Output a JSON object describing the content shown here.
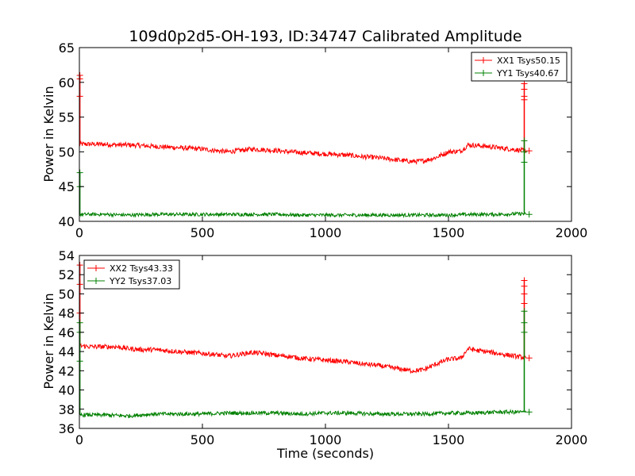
{
  "figure": {
    "title": "109d0p2d5-OH-193, ID:34747 Calibrated Amplitude",
    "xlabel": "Time (seconds)"
  },
  "chart_data": [
    {
      "type": "line",
      "title": "109d0p2d5-OH-193, ID:34747 Calibrated Amplitude",
      "ylabel": "Power in Kelvin",
      "xlim": [
        0,
        2000
      ],
      "ylim": [
        40,
        65
      ],
      "xticks": [
        0,
        500,
        1000,
        1500,
        2000
      ],
      "yticks": [
        40,
        45,
        50,
        55,
        60,
        65
      ],
      "grid": false,
      "legend_position": "top-right",
      "series": [
        {
          "name": "XX1 Tsys50.15",
          "color": "#ff0000",
          "noise": 0.35,
          "spikes": [
            {
              "x": 2,
              "values": [
                61.0,
                60.5,
                58.0
              ]
            },
            {
              "x": 1808,
              "values": [
                59.8,
                59.0,
                58.0,
                57.5
              ]
            }
          ],
          "points": [
            [
              0,
              51.1
            ],
            [
              50,
              51.1
            ],
            [
              100,
              51.1
            ],
            [
              150,
              51.0
            ],
            [
              200,
              51.0
            ],
            [
              250,
              50.9
            ],
            [
              300,
              50.8
            ],
            [
              350,
              50.7
            ],
            [
              400,
              50.6
            ],
            [
              450,
              50.5
            ],
            [
              500,
              50.4
            ],
            [
              550,
              50.2
            ],
            [
              600,
              50.0
            ],
            [
              650,
              50.2
            ],
            [
              700,
              50.4
            ],
            [
              750,
              50.3
            ],
            [
              800,
              50.2
            ],
            [
              850,
              50.0
            ],
            [
              900,
              49.9
            ],
            [
              950,
              49.8
            ],
            [
              1000,
              49.7
            ],
            [
              1050,
              49.6
            ],
            [
              1100,
              49.5
            ],
            [
              1150,
              49.3
            ],
            [
              1200,
              49.2
            ],
            [
              1250,
              49.0
            ],
            [
              1300,
              48.8
            ],
            [
              1350,
              48.6
            ],
            [
              1400,
              48.7
            ],
            [
              1450,
              49.2
            ],
            [
              1500,
              50.0
            ],
            [
              1550,
              50.1
            ],
            [
              1580,
              51.0
            ],
            [
              1620,
              50.9
            ],
            [
              1650,
              50.8
            ],
            [
              1700,
              50.6
            ],
            [
              1750,
              50.4
            ],
            [
              1800,
              50.2
            ],
            [
              1815,
              50.15
            ]
          ]
        },
        {
          "name": "YY1 Tsys40.67",
          "color": "#008000",
          "noise": 0.25,
          "spikes": [
            {
              "x": 2,
              "values": [
                47.0,
                45.0
              ]
            },
            {
              "x": 1808,
              "values": [
                51.6,
                50.0,
                48.5
              ]
            }
          ],
          "points": [
            [
              0,
              41.0
            ],
            [
              100,
              41.0
            ],
            [
              200,
              40.9
            ],
            [
              300,
              41.0
            ],
            [
              400,
              41.0
            ],
            [
              500,
              41.0
            ],
            [
              600,
              41.0
            ],
            [
              700,
              41.0
            ],
            [
              800,
              41.0
            ],
            [
              900,
              40.9
            ],
            [
              1000,
              40.9
            ],
            [
              1100,
              40.9
            ],
            [
              1200,
              40.9
            ],
            [
              1300,
              40.9
            ],
            [
              1400,
              40.9
            ],
            [
              1500,
              40.9
            ],
            [
              1600,
              41.0
            ],
            [
              1700,
              41.0
            ],
            [
              1800,
              41.1
            ],
            [
              1815,
              41.0
            ]
          ]
        }
      ]
    },
    {
      "type": "line",
      "title": "",
      "ylabel": "Power in Kelvin",
      "xlabel": "Time (seconds)",
      "xlim": [
        0,
        2000
      ],
      "ylim": [
        36,
        54
      ],
      "xticks": [
        0,
        500,
        1000,
        1500,
        2000
      ],
      "yticks": [
        36,
        38,
        40,
        42,
        44,
        46,
        48,
        50,
        52,
        54
      ],
      "grid": false,
      "legend_position": "top-left",
      "series": [
        {
          "name": "XX2 Tsys43.33",
          "color": "#ff0000",
          "noise": 0.25,
          "spikes": [
            {
              "x": 2,
              "values": [
                53.0,
                51.0,
                48.0
              ]
            },
            {
              "x": 1808,
              "values": [
                51.4,
                50.8,
                50.0,
                49.0
              ]
            }
          ],
          "points": [
            [
              0,
              44.6
            ],
            [
              50,
              44.5
            ],
            [
              100,
              44.5
            ],
            [
              150,
              44.5
            ],
            [
              200,
              44.3
            ],
            [
              250,
              44.2
            ],
            [
              300,
              44.2
            ],
            [
              350,
              44.1
            ],
            [
              400,
              44.0
            ],
            [
              450,
              43.9
            ],
            [
              500,
              43.8
            ],
            [
              550,
              43.7
            ],
            [
              600,
              43.5
            ],
            [
              650,
              43.7
            ],
            [
              700,
              43.9
            ],
            [
              750,
              43.8
            ],
            [
              800,
              43.6
            ],
            [
              850,
              43.5
            ],
            [
              900,
              43.3
            ],
            [
              950,
              43.2
            ],
            [
              1000,
              43.1
            ],
            [
              1050,
              43.0
            ],
            [
              1100,
              42.9
            ],
            [
              1150,
              42.7
            ],
            [
              1200,
              42.6
            ],
            [
              1250,
              42.4
            ],
            [
              1300,
              42.2
            ],
            [
              1350,
              42.0
            ],
            [
              1400,
              42.1
            ],
            [
              1450,
              42.7
            ],
            [
              1500,
              43.2
            ],
            [
              1550,
              43.3
            ],
            [
              1580,
              44.3
            ],
            [
              1620,
              44.1
            ],
            [
              1650,
              44.0
            ],
            [
              1700,
              43.8
            ],
            [
              1750,
              43.6
            ],
            [
              1800,
              43.4
            ],
            [
              1815,
              43.33
            ]
          ]
        },
        {
          "name": "YY2 Tsys37.03",
          "color": "#008000",
          "noise": 0.2,
          "spikes": [
            {
              "x": 2,
              "values": [
                47.0,
                46.0,
                43.0
              ]
            },
            {
              "x": 1808,
              "values": [
                48.2,
                47.0,
                46.0
              ]
            }
          ],
          "points": [
            [
              0,
              37.4
            ],
            [
              100,
              37.4
            ],
            [
              200,
              37.3
            ],
            [
              300,
              37.5
            ],
            [
              400,
              37.5
            ],
            [
              500,
              37.5
            ],
            [
              600,
              37.6
            ],
            [
              700,
              37.6
            ],
            [
              800,
              37.6
            ],
            [
              900,
              37.5
            ],
            [
              1000,
              37.6
            ],
            [
              1100,
              37.6
            ],
            [
              1200,
              37.5
            ],
            [
              1300,
              37.5
            ],
            [
              1400,
              37.5
            ],
            [
              1500,
              37.6
            ],
            [
              1600,
              37.6
            ],
            [
              1700,
              37.7
            ],
            [
              1800,
              37.7
            ],
            [
              1815,
              37.7
            ]
          ]
        }
      ]
    }
  ]
}
